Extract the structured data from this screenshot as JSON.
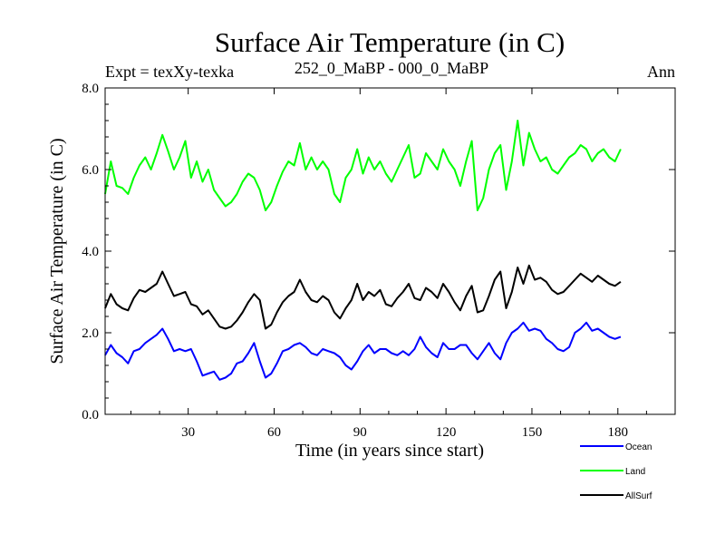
{
  "chart_data": {
    "type": "line",
    "title": "Surface Air Temperature (in C)",
    "subtitle_left": "Expt = texXy-texka",
    "subtitle_center": "252_0_MaBP - 000_0_MaBP",
    "subtitle_right": "Ann",
    "xlabel": "Time (in years since start)",
    "ylabel": "Surface Air Temperature (in C)",
    "xlim": [
      1,
      200
    ],
    "ylim": [
      0,
      8
    ],
    "xticks": [
      30,
      60,
      90,
      120,
      150,
      180
    ],
    "yticks": [
      0,
      2,
      4,
      6,
      8
    ],
    "ytick_labels": [
      "0.0",
      "2.0",
      "4.0",
      "6.0",
      "8.0"
    ],
    "x_start": 1,
    "x_step": 2,
    "series": [
      {
        "name": "Ocean",
        "color": "#0000ff",
        "values": [
          1.45,
          1.7,
          1.5,
          1.4,
          1.25,
          1.55,
          1.6,
          1.75,
          1.85,
          1.95,
          2.1,
          1.85,
          1.55,
          1.6,
          1.55,
          1.6,
          1.3,
          0.95,
          1.0,
          1.05,
          0.85,
          0.9,
          1.0,
          1.25,
          1.3,
          1.5,
          1.75,
          1.3,
          0.9,
          1.0,
          1.25,
          1.55,
          1.6,
          1.7,
          1.75,
          1.65,
          1.5,
          1.45,
          1.6,
          1.55,
          1.5,
          1.4,
          1.2,
          1.1,
          1.3,
          1.55,
          1.7,
          1.5,
          1.6,
          1.6,
          1.5,
          1.45,
          1.55,
          1.45,
          1.6,
          1.9,
          1.65,
          1.5,
          1.4,
          1.75,
          1.6,
          1.6,
          1.7,
          1.7,
          1.5,
          1.35,
          1.55,
          1.75,
          1.5,
          1.35,
          1.75,
          2.0,
          2.1,
          2.25,
          2.05,
          2.1,
          2.05,
          1.85,
          1.75,
          1.6,
          1.55,
          1.65,
          2.0,
          2.1,
          2.25,
          2.05,
          2.1,
          2.0,
          1.9,
          1.85,
          1.9
        ]
      },
      {
        "name": "Land",
        "color": "#00ff00",
        "values": [
          5.4,
          6.2,
          5.6,
          5.55,
          5.4,
          5.8,
          6.1,
          6.3,
          6.0,
          6.4,
          6.85,
          6.45,
          6.0,
          6.3,
          6.7,
          5.8,
          6.2,
          5.7,
          6.0,
          5.5,
          5.3,
          5.1,
          5.2,
          5.4,
          5.7,
          5.9,
          5.8,
          5.5,
          5.0,
          5.2,
          5.6,
          5.95,
          6.2,
          6.1,
          6.65,
          6.0,
          6.3,
          6.0,
          6.2,
          6.0,
          5.4,
          5.2,
          5.8,
          6.0,
          6.5,
          5.9,
          6.3,
          6.0,
          6.2,
          5.9,
          5.7,
          6.0,
          6.3,
          6.6,
          5.8,
          5.9,
          6.4,
          6.2,
          6.0,
          6.5,
          6.2,
          6.0,
          5.6,
          6.2,
          6.7,
          5.0,
          5.3,
          6.0,
          6.4,
          6.6,
          5.5,
          6.2,
          7.2,
          6.1,
          6.9,
          6.5,
          6.2,
          6.3,
          6.0,
          5.9,
          6.1,
          6.3,
          6.4,
          6.6,
          6.5,
          6.2,
          6.4,
          6.5,
          6.3,
          6.2,
          6.5
        ]
      },
      {
        "name": "AllSurf",
        "color": "#000000",
        "values": [
          2.6,
          2.95,
          2.7,
          2.6,
          2.55,
          2.85,
          3.05,
          3.0,
          3.1,
          3.2,
          3.5,
          3.2,
          2.9,
          2.95,
          3.0,
          2.7,
          2.65,
          2.45,
          2.55,
          2.35,
          2.15,
          2.1,
          2.15,
          2.3,
          2.5,
          2.75,
          2.95,
          2.8,
          2.1,
          2.2,
          2.5,
          2.75,
          2.9,
          3.0,
          3.3,
          3.0,
          2.8,
          2.75,
          2.9,
          2.8,
          2.5,
          2.35,
          2.6,
          2.8,
          3.2,
          2.8,
          3.0,
          2.9,
          3.05,
          2.7,
          2.65,
          2.85,
          3.0,
          3.2,
          2.85,
          2.8,
          3.1,
          3.0,
          2.85,
          3.2,
          3.0,
          2.75,
          2.55,
          2.9,
          3.15,
          2.5,
          2.55,
          2.9,
          3.3,
          3.5,
          2.6,
          3.0,
          3.6,
          3.2,
          3.65,
          3.3,
          3.35,
          3.25,
          3.05,
          2.95,
          3.0,
          3.15,
          3.3,
          3.45,
          3.35,
          3.25,
          3.4,
          3.3,
          3.2,
          3.15,
          3.25
        ]
      }
    ]
  }
}
